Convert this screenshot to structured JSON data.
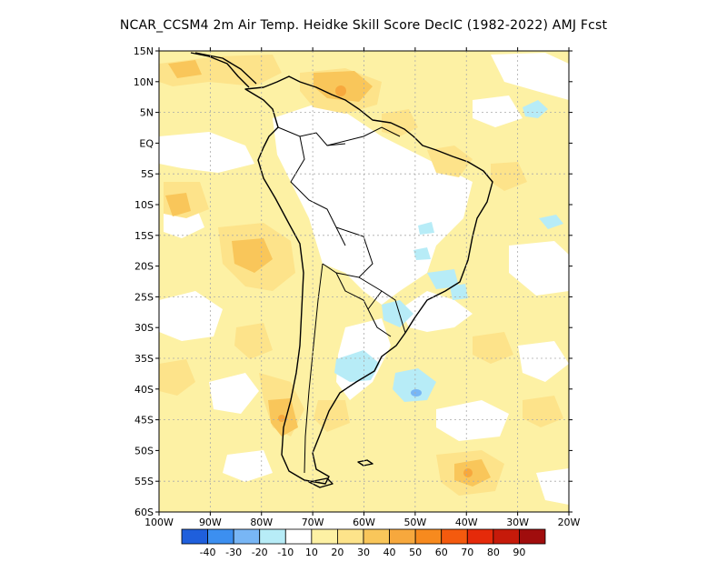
{
  "title": "NCAR_CCSM4  2m Air Temp. Heidke Skill Score DecIC (1982-2022) AMJ Fcst",
  "lat_labels": [
    "15N",
    "10N",
    "5N",
    "EQ",
    "5S",
    "10S",
    "15S",
    "20S",
    "25S",
    "30S",
    "35S",
    "40S",
    "45S",
    "50S",
    "55S",
    "60S"
  ],
  "lon_labels": [
    "100W",
    "90W",
    "80W",
    "70W",
    "60W",
    "50W",
    "40W",
    "30W",
    "20W"
  ],
  "extent": {
    "lon": [
      -100,
      -20
    ],
    "lat": [
      -60,
      15
    ]
  },
  "colorbar": {
    "colors": [
      "#1f5fdc",
      "#3c8ff0",
      "#78b6f5",
      "#b7ecf7",
      "#ffffff",
      "#fdf1a4",
      "#fde38a",
      "#f9c65a",
      "#f7a83d",
      "#f78a1e",
      "#f45a0e",
      "#e52a0a",
      "#c61a0a",
      "#a00d0d"
    ],
    "labels": [
      "-40",
      "-30",
      "-20",
      "-10",
      "10",
      "20",
      "30",
      "40",
      "50",
      "60",
      "70",
      "80",
      "90"
    ]
  },
  "colors": {
    "skill_10_20": "#fdf1a4",
    "skill_20_30": "#fde38a",
    "skill_30_40": "#f9c65a",
    "skill_40_50": "#f7a83d",
    "neg_10_20": "#b7ecf7",
    "neg_20_30": "#78b6f5"
  }
}
